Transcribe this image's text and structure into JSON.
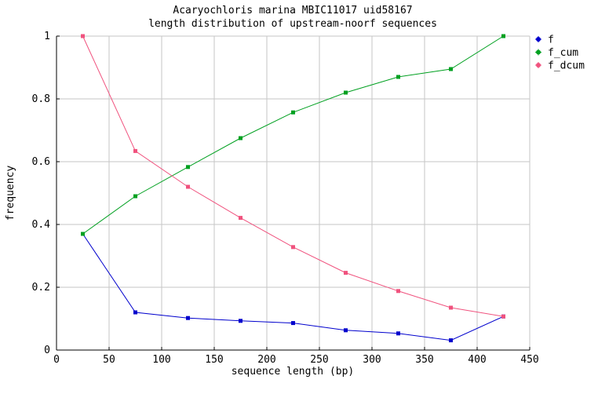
{
  "chart_data": {
    "type": "line",
    "title": "Acaryochloris marina MBIC11017 uid58167",
    "subtitle": "length distribution of upstream-noorf sequences",
    "xlabel": "sequence length (bp)",
    "ylabel": "frequency",
    "xlim": [
      0,
      450
    ],
    "ylim": [
      0,
      1
    ],
    "xticks": [
      0,
      50,
      100,
      150,
      200,
      250,
      300,
      350,
      400,
      450
    ],
    "yticks": [
      0,
      0.2,
      0.4,
      0.6,
      0.8,
      1
    ],
    "ytick_labels": [
      "0",
      "0.2",
      "0.4",
      "0.6",
      "0.8",
      "1"
    ],
    "grid": true,
    "grid_color": "#c6c6c6",
    "axis_color": "#000000",
    "background_color": "#ffffff",
    "legend_position": "outside-top-right",
    "x": [
      25,
      75,
      125,
      175,
      225,
      275,
      325,
      375,
      425
    ],
    "series": [
      {
        "name": "f",
        "color": "#0000cd",
        "values": [
          0.37,
          0.12,
          0.102,
          0.093,
          0.086,
          0.063,
          0.053,
          0.031,
          0.107
        ]
      },
      {
        "name": "f_cum",
        "color": "#00a020",
        "values": [
          0.37,
          0.49,
          0.583,
          0.675,
          0.757,
          0.82,
          0.87,
          0.895,
          1.0
        ]
      },
      {
        "name": "f_dcum",
        "color": "#f0527e",
        "values": [
          1.0,
          0.634,
          0.52,
          0.421,
          0.328,
          0.246,
          0.188,
          0.135,
          0.107
        ]
      }
    ]
  }
}
